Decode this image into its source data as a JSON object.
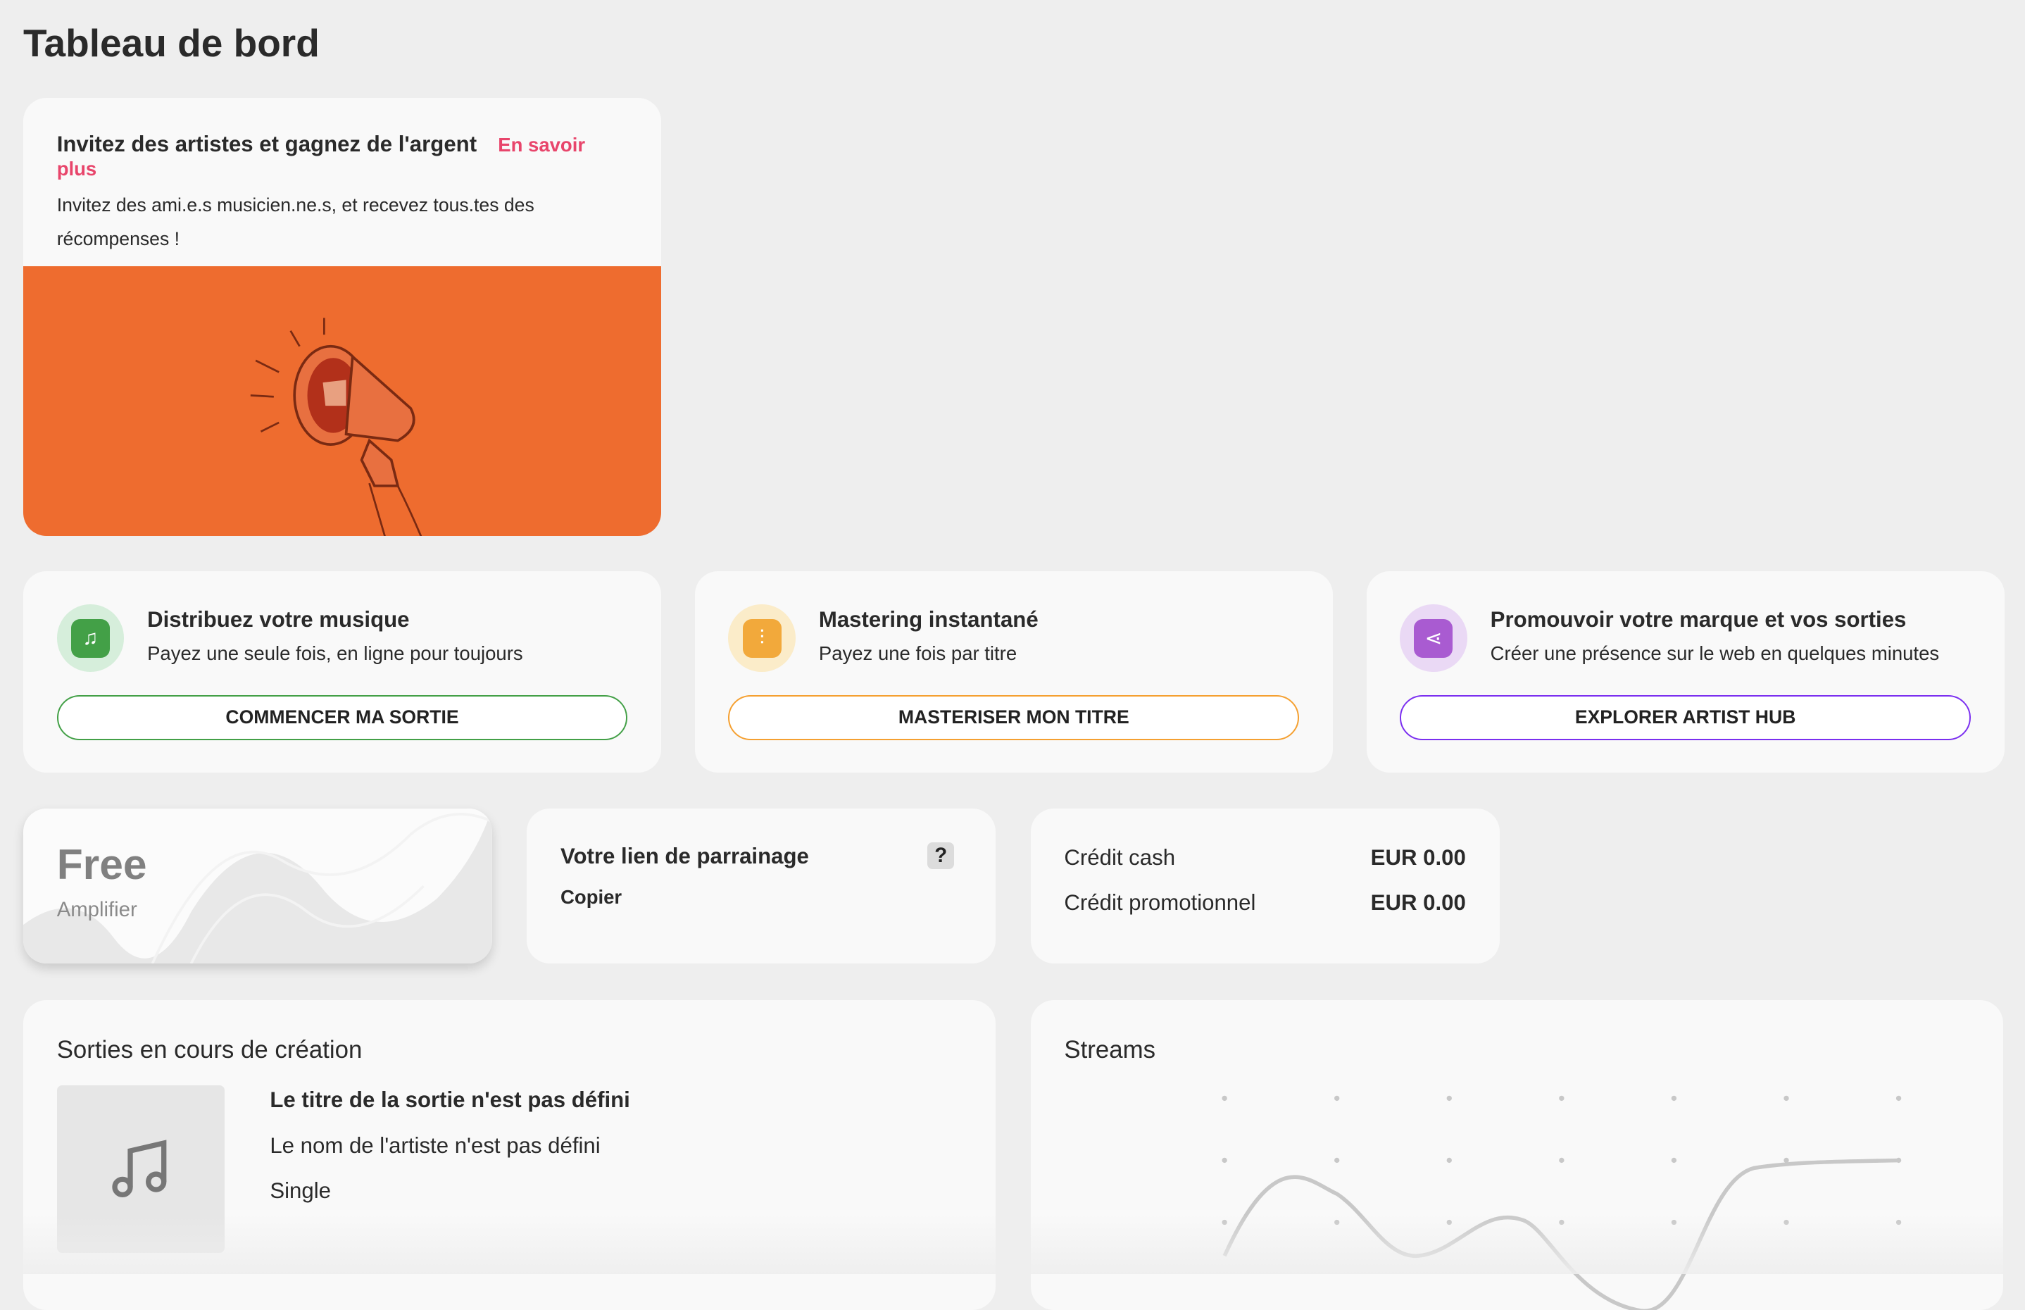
{
  "page_title": "Tableau de bord",
  "invite": {
    "title": "Invitez des artistes et gagnez de l'argent",
    "link": "En savoir plus",
    "text": "Invitez des ami.e.s musicien.ne.s, et recevez tous.tes des récompenses !",
    "banner_color": "#ee6c2f",
    "illustration": "megaphone-icon"
  },
  "services": [
    {
      "title": "Distribuez votre musique",
      "subtitle": "Payez une seule fois, en ligne pour toujours",
      "button": "COMMENCER MA SORTIE",
      "accent": "#43a047",
      "icon": "music-broadcast-icon"
    },
    {
      "title": "Mastering instantané",
      "subtitle": "Payez une fois par titre",
      "button": "MASTERISER MON TITRE",
      "accent": "#f5a031",
      "icon": "equalizer-icon"
    },
    {
      "title": "Promouvoir votre marque et vos sorties",
      "subtitle": "Créer une présence sur le web en quelques minutes",
      "button": "EXPLORER ARTIST HUB",
      "accent": "#7b2ff0",
      "icon": "share-icon"
    }
  ],
  "plan": {
    "name": "Free",
    "upgrade": "Amplifier"
  },
  "referral": {
    "title": "Votre lien de parrainage",
    "help": "?",
    "copy": "Copier"
  },
  "credits": [
    {
      "label": "Crédit cash",
      "value": "EUR 0.00"
    },
    {
      "label": "Crédit promotionnel",
      "value": "EUR 0.00"
    }
  ],
  "releases": {
    "title": "Sorties en cours de création",
    "items": [
      {
        "title": "Le titre de la sortie n'est pas défini",
        "artist": "Le nom de l'artiste n'est pas défini",
        "type": "Single"
      }
    ]
  },
  "streams": {
    "title": "Streams"
  }
}
